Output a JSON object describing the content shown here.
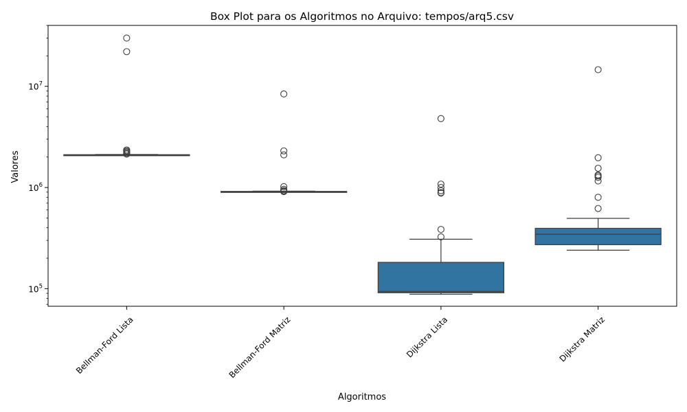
{
  "chart_data": {
    "type": "box",
    "title": "Box Plot para os Algoritmos no Arquivo: tempos/arq5.csv",
    "xlabel": "Algoritmos",
    "ylabel": "Valores",
    "yscale": "log",
    "ylim": [
      67000,
      40000000
    ],
    "yticks": [
      {
        "value": 100000,
        "base": "10",
        "exp": "5"
      },
      {
        "value": 1000000,
        "base": "10",
        "exp": "6"
      },
      {
        "value": 10000000,
        "base": "10",
        "exp": "7"
      }
    ],
    "grid": false,
    "categories": [
      "Bellman-Ford Lista",
      "Bellman-Ford Matriz",
      "Dijkstra Lista",
      "Dijkstra Matriz"
    ],
    "boxes": [
      {
        "category": "Bellman-Ford Lista",
        "whisker_low": 2090000,
        "q1": 2095000,
        "median": 2100000,
        "q3": 2110000,
        "whisker_high": 2120000,
        "outliers": [
          30000000,
          22000000,
          2350000,
          2300000,
          2250000,
          2200000,
          2150000,
          2140000
        ]
      },
      {
        "category": "Bellman-Ford Matriz",
        "whisker_low": 900000,
        "q1": 905000,
        "median": 910000,
        "q3": 915000,
        "whisker_high": 920000,
        "outliers": [
          8400000,
          2300000,
          2100000,
          1020000,
          960000,
          930000,
          920000,
          910000
        ]
      },
      {
        "category": "Dijkstra Lista",
        "whisker_low": 88000,
        "q1": 91000,
        "median": 94000,
        "q3": 182000,
        "whisker_high": 308000,
        "outliers": [
          4800000,
          1080000,
          1000000,
          930000,
          890000,
          880000,
          385000,
          325000
        ]
      },
      {
        "category": "Dijkstra Matriz",
        "whisker_low": 240000,
        "q1": 272000,
        "median": 345000,
        "q3": 395000,
        "whisker_high": 495000,
        "outliers": [
          14600000,
          1970000,
          1550000,
          1330000,
          1300000,
          1260000,
          1160000,
          800000,
          620000
        ]
      }
    ],
    "box_color": "#3274a1"
  }
}
